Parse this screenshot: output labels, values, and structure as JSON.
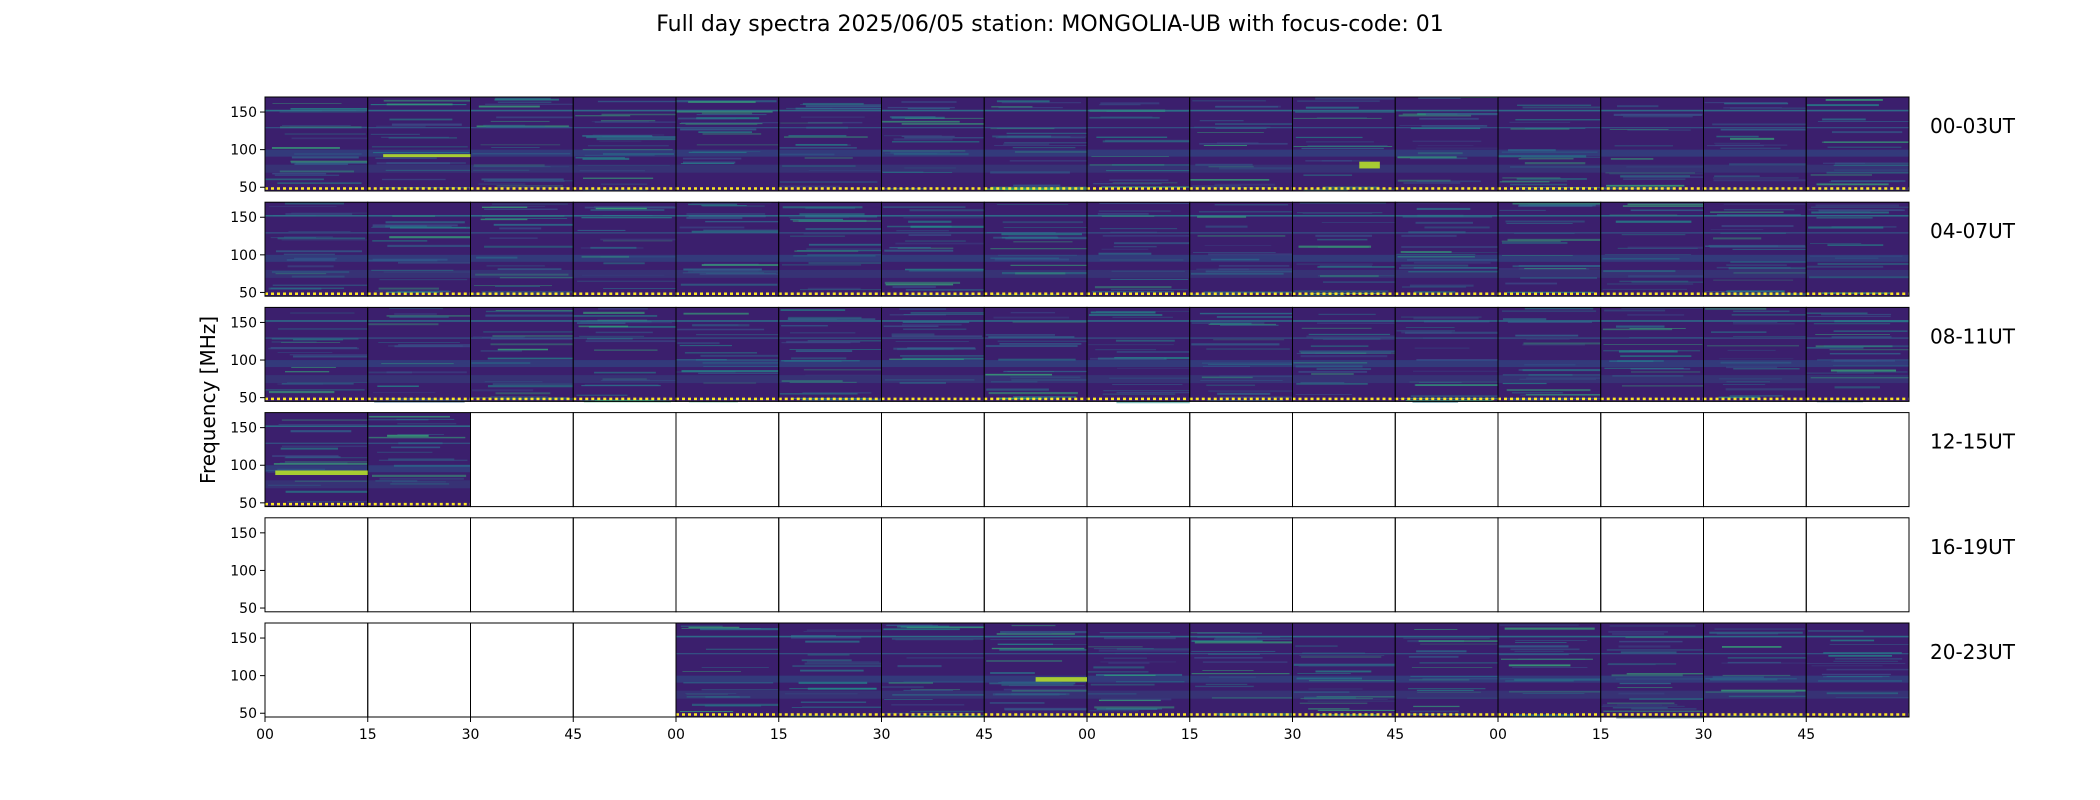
{
  "title": "Full day spectra 2025/06/05 station: MONGOLIA-UB with focus-code: 01",
  "chart_data": {
    "type": "heatmap",
    "title": "Full day spectra 2025/06/05 station: MONGOLIA-UB with focus-code: 01",
    "ylabel": "Frequency [MHz]",
    "ylim": [
      45,
      170
    ],
    "yticks": [
      50,
      100,
      150
    ],
    "xticklabels": [
      "00",
      "15",
      "30",
      "45",
      "00",
      "15",
      "30",
      "45",
      "00",
      "15",
      "30",
      "45",
      "00",
      "15",
      "30",
      "45"
    ],
    "colormap": "viridis",
    "colors": {
      "background": "#3b1f6d",
      "low": "#440154",
      "mid": "#2c7c8e",
      "high": "#b5de2b",
      "marker": "#fde725"
    },
    "rows": [
      {
        "label": "00-03UT",
        "filled": [
          1,
          1,
          1,
          1,
          1,
          1,
          1,
          1,
          1,
          1,
          1,
          1,
          1,
          1,
          1,
          1
        ]
      },
      {
        "label": "04-07UT",
        "filled": [
          1,
          1,
          1,
          1,
          1,
          1,
          1,
          1,
          1,
          1,
          1,
          1,
          1,
          1,
          1,
          1
        ]
      },
      {
        "label": "08-11UT",
        "filled": [
          1,
          1,
          1,
          1,
          1,
          1,
          1,
          1,
          1,
          1,
          1,
          1,
          1,
          1,
          1,
          1
        ]
      },
      {
        "label": "12-15UT",
        "filled": [
          1,
          1,
          0,
          0,
          0,
          0,
          0,
          0,
          0,
          0,
          0,
          0,
          0,
          0,
          0,
          0
        ]
      },
      {
        "label": "16-19UT",
        "filled": [
          0,
          0,
          0,
          0,
          0,
          0,
          0,
          0,
          0,
          0,
          0,
          0,
          0,
          0,
          0,
          0
        ]
      },
      {
        "label": "20-23UT",
        "filled": [
          0,
          0,
          0,
          0,
          1,
          1,
          1,
          1,
          1,
          1,
          1,
          1,
          1,
          1,
          1,
          1
        ]
      }
    ],
    "bright_bands": [
      {
        "row": 0,
        "panel": 1,
        "f1": 90,
        "f2": 94,
        "x1": 0.15,
        "x2": 1.0
      },
      {
        "row": 0,
        "panel": 10,
        "f1": 75,
        "f2": 84,
        "x1": 0.65,
        "x2": 0.85
      },
      {
        "row": 3,
        "panel": 0,
        "f1": 87,
        "f2": 93,
        "x1": 0.1,
        "x2": 1.0
      },
      {
        "row": 5,
        "panel": 7,
        "f1": 92,
        "f2": 98,
        "x1": 0.5,
        "x2": 1.0
      }
    ]
  }
}
